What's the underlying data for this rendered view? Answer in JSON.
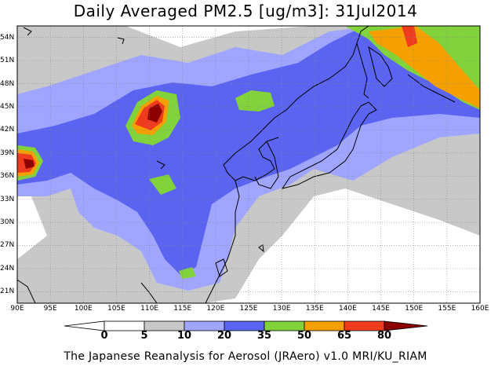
{
  "title": "Daily Averaged PM2.5 [ug/m3]: 31Jul2014",
  "footer": "The Japanese Reanalysis for Aerosol (JRAero) v1.0 MRI/KU_RIAM",
  "map": {
    "lat_labels": [
      "54N",
      "51N",
      "48N",
      "45N",
      "42N",
      "39N",
      "36N",
      "33N",
      "30N",
      "27N",
      "24N",
      "21N"
    ],
    "lon_labels": [
      "90E",
      "95E",
      "100E",
      "105E",
      "110E",
      "115E",
      "120E",
      "125E",
      "130E",
      "135E",
      "140E",
      "145E",
      "150E",
      "155E",
      "160E"
    ],
    "lat_values": [
      54,
      51,
      48,
      45,
      42,
      39,
      36,
      33,
      30,
      27,
      24,
      21
    ],
    "lon_values": [
      90,
      95,
      100,
      105,
      110,
      115,
      120,
      125,
      130,
      135,
      140,
      145,
      150,
      155,
      160
    ],
    "extent": {
      "lon_min": 90,
      "lon_max": 160,
      "lat_min": 19.5,
      "lat_max": 55.5
    }
  },
  "colorbar": {
    "labels": [
      "0",
      "5",
      "10",
      "20",
      "35",
      "50",
      "65",
      "80"
    ],
    "colors": [
      "#ffffff",
      "#c8c8c8",
      "#a0a6ff",
      "#5a64f0",
      "#82d23c",
      "#f5a000",
      "#f03c1e",
      "#8c0000"
    ]
  }
}
